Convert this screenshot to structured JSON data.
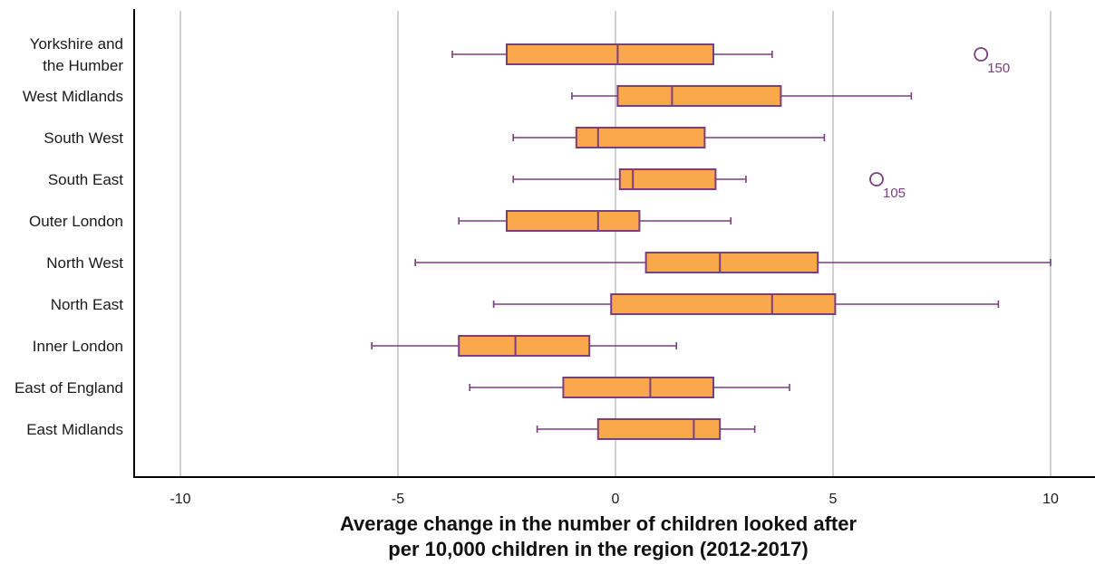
{
  "chart_data": {
    "type": "boxplot",
    "orientation": "horizontal",
    "title": "",
    "xlabel_lines": [
      "Average change in the number of children looked after",
      "per 10,000 children in the region (2012-2017)"
    ],
    "ylabel": "",
    "xlim": [
      -11,
      11
    ],
    "xticks": [
      -10,
      -5,
      0,
      5,
      10
    ],
    "xtick_labels": [
      "-10",
      "-5",
      "0",
      "5",
      "10"
    ],
    "grid": "vertical",
    "colors": {
      "box_fill": "#F9A84B",
      "box_stroke": "#7B3F7E",
      "grid": "#d0d0d0",
      "axis": "#000000"
    },
    "categories": [
      "Yorkshire and the Humber",
      "West Midlands",
      "South West",
      "South East",
      "Outer London",
      "North West",
      "North East",
      "Inner London",
      "East of England",
      "East Midlands"
    ],
    "category_label_lines": [
      [
        "Yorkshire and",
        "the Humber"
      ],
      [
        "West Midlands"
      ],
      [
        "South West"
      ],
      [
        "South East"
      ],
      [
        "Outer London"
      ],
      [
        "North West"
      ],
      [
        "North East"
      ],
      [
        "Inner London"
      ],
      [
        "East of England"
      ],
      [
        "East Midlands"
      ]
    ],
    "boxes": [
      {
        "whisker_low": -3.75,
        "q1": -2.5,
        "median": 0.05,
        "q3": 2.25,
        "whisker_high": 3.6,
        "outliers": [
          {
            "value": 8.4,
            "label": "150"
          }
        ]
      },
      {
        "whisker_low": -1.0,
        "q1": 0.05,
        "median": 1.3,
        "q3": 3.8,
        "whisker_high": 6.8,
        "outliers": []
      },
      {
        "whisker_low": -2.35,
        "q1": -0.9,
        "median": -0.4,
        "q3": 2.05,
        "whisker_high": 4.8,
        "outliers": []
      },
      {
        "whisker_low": -2.35,
        "q1": 0.1,
        "median": 0.4,
        "q3": 2.3,
        "whisker_high": 3.0,
        "outliers": [
          {
            "value": 6.0,
            "label": "105"
          }
        ]
      },
      {
        "whisker_low": -3.6,
        "q1": -2.5,
        "median": -0.4,
        "q3": 0.55,
        "whisker_high": 2.65,
        "outliers": []
      },
      {
        "whisker_low": -4.6,
        "q1": 0.7,
        "median": 2.4,
        "q3": 4.65,
        "whisker_high": 10.0,
        "outliers": []
      },
      {
        "whisker_low": -2.8,
        "q1": -0.1,
        "median": 3.6,
        "q3": 5.05,
        "whisker_high": 8.8,
        "outliers": []
      },
      {
        "whisker_low": -5.6,
        "q1": -3.6,
        "median": -2.3,
        "q3": -0.6,
        "whisker_high": 1.4,
        "outliers": []
      },
      {
        "whisker_low": -3.35,
        "q1": -1.2,
        "median": 0.8,
        "q3": 2.25,
        "whisker_high": 4.0,
        "outliers": []
      },
      {
        "whisker_low": -1.8,
        "q1": -0.4,
        "median": 1.8,
        "q3": 2.4,
        "whisker_high": 3.2,
        "outliers": []
      }
    ]
  }
}
